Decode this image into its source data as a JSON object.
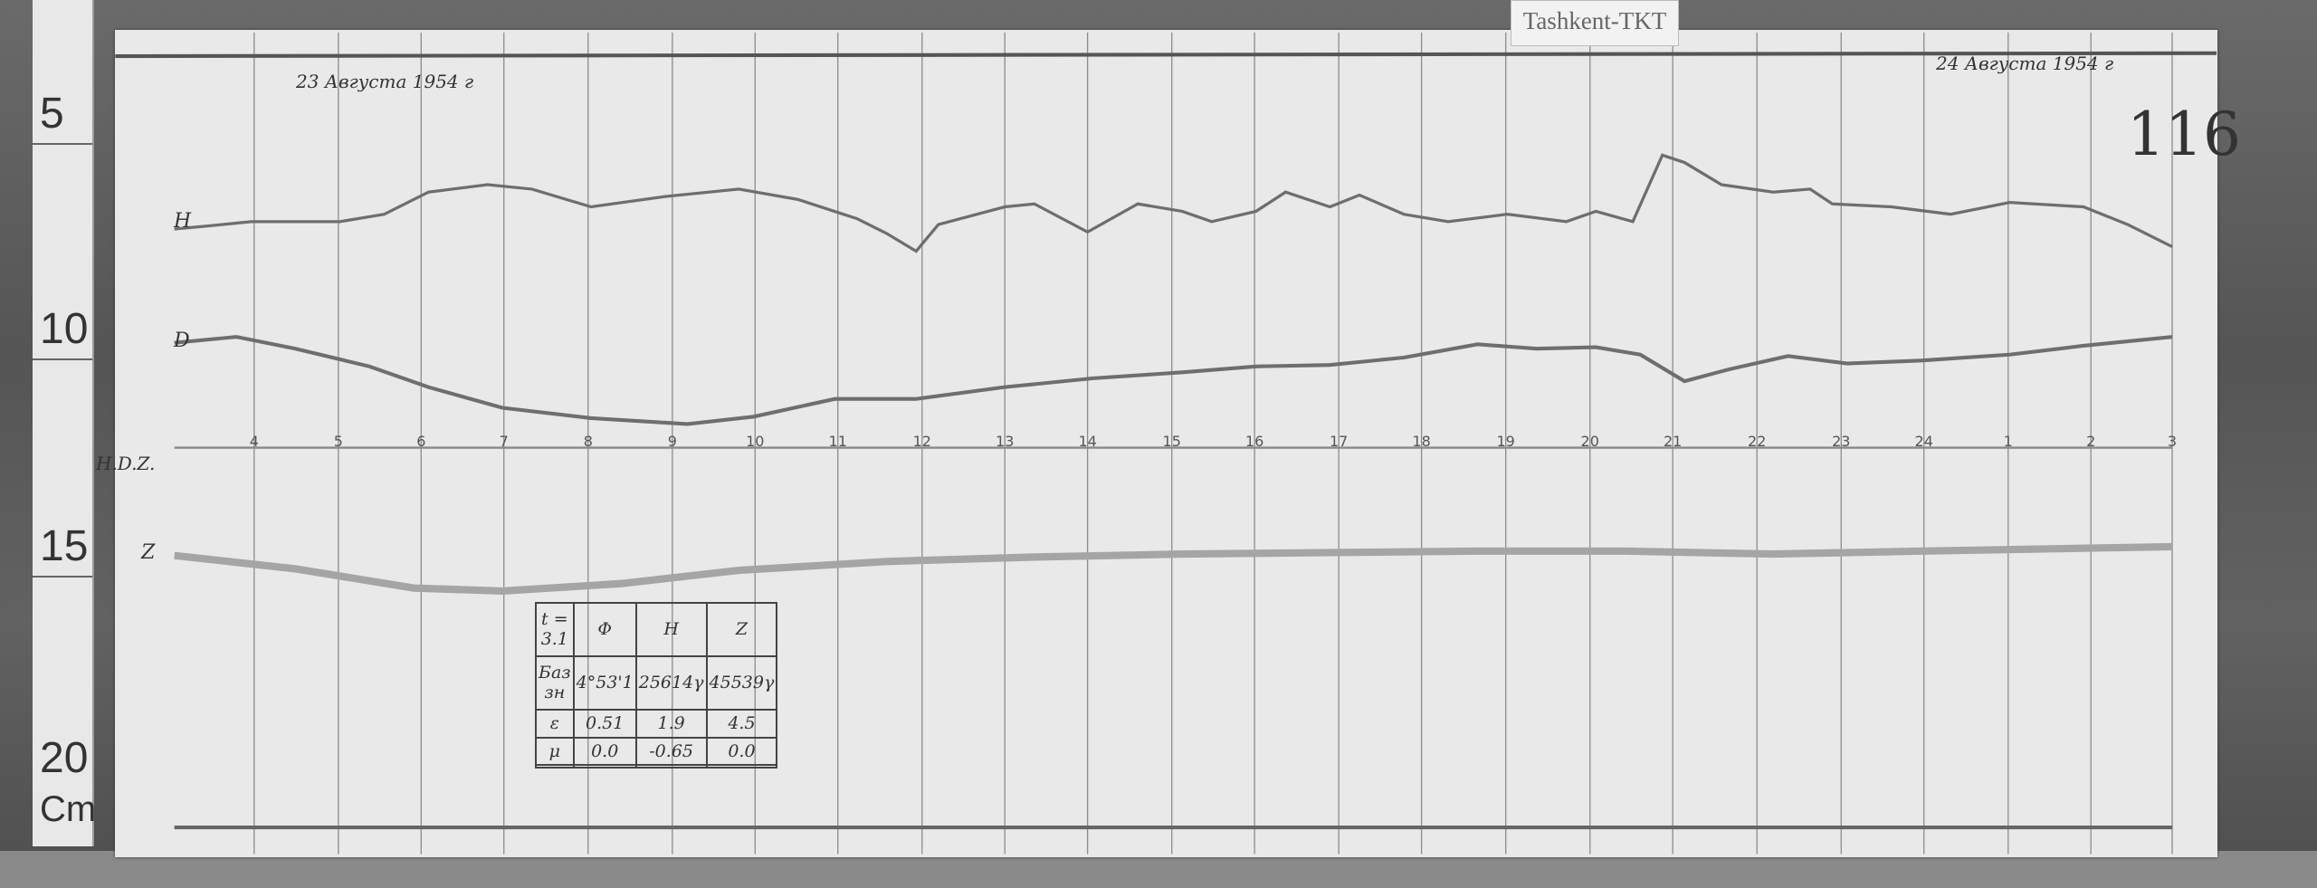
{
  "station_label": "Tashkent-TKT",
  "sheet_number": "116",
  "dates": {
    "start": "23 Августа 1954 г",
    "end": "24 Августа 1954 г"
  },
  "ruler": {
    "marks": [
      "5",
      "10",
      "15",
      "20"
    ],
    "unit": "Cm"
  },
  "trace_labels": {
    "h": "H",
    "d": "D",
    "z": "Z",
    "baseline": "H.D.Z."
  },
  "hours": [
    "4",
    "5",
    "6",
    "7",
    "8",
    "9",
    "10",
    "11",
    "12",
    "13",
    "14",
    "15",
    "16",
    "17",
    "18",
    "19",
    "20",
    "21",
    "22",
    "23",
    "24",
    "1",
    "2",
    "3"
  ],
  "table": {
    "header": [
      "t = 3.1",
      "Φ",
      "H",
      "Z"
    ],
    "rows": [
      [
        "Баз зн",
        "4°53'1",
        "25614γ",
        "45539γ"
      ],
      [
        "ε",
        "0.51",
        "1.9",
        "4.5"
      ],
      [
        "μ",
        "0.0",
        "-0.65",
        "0.0"
      ],
      [
        "",
        "",
        "",
        ""
      ]
    ]
  }
}
